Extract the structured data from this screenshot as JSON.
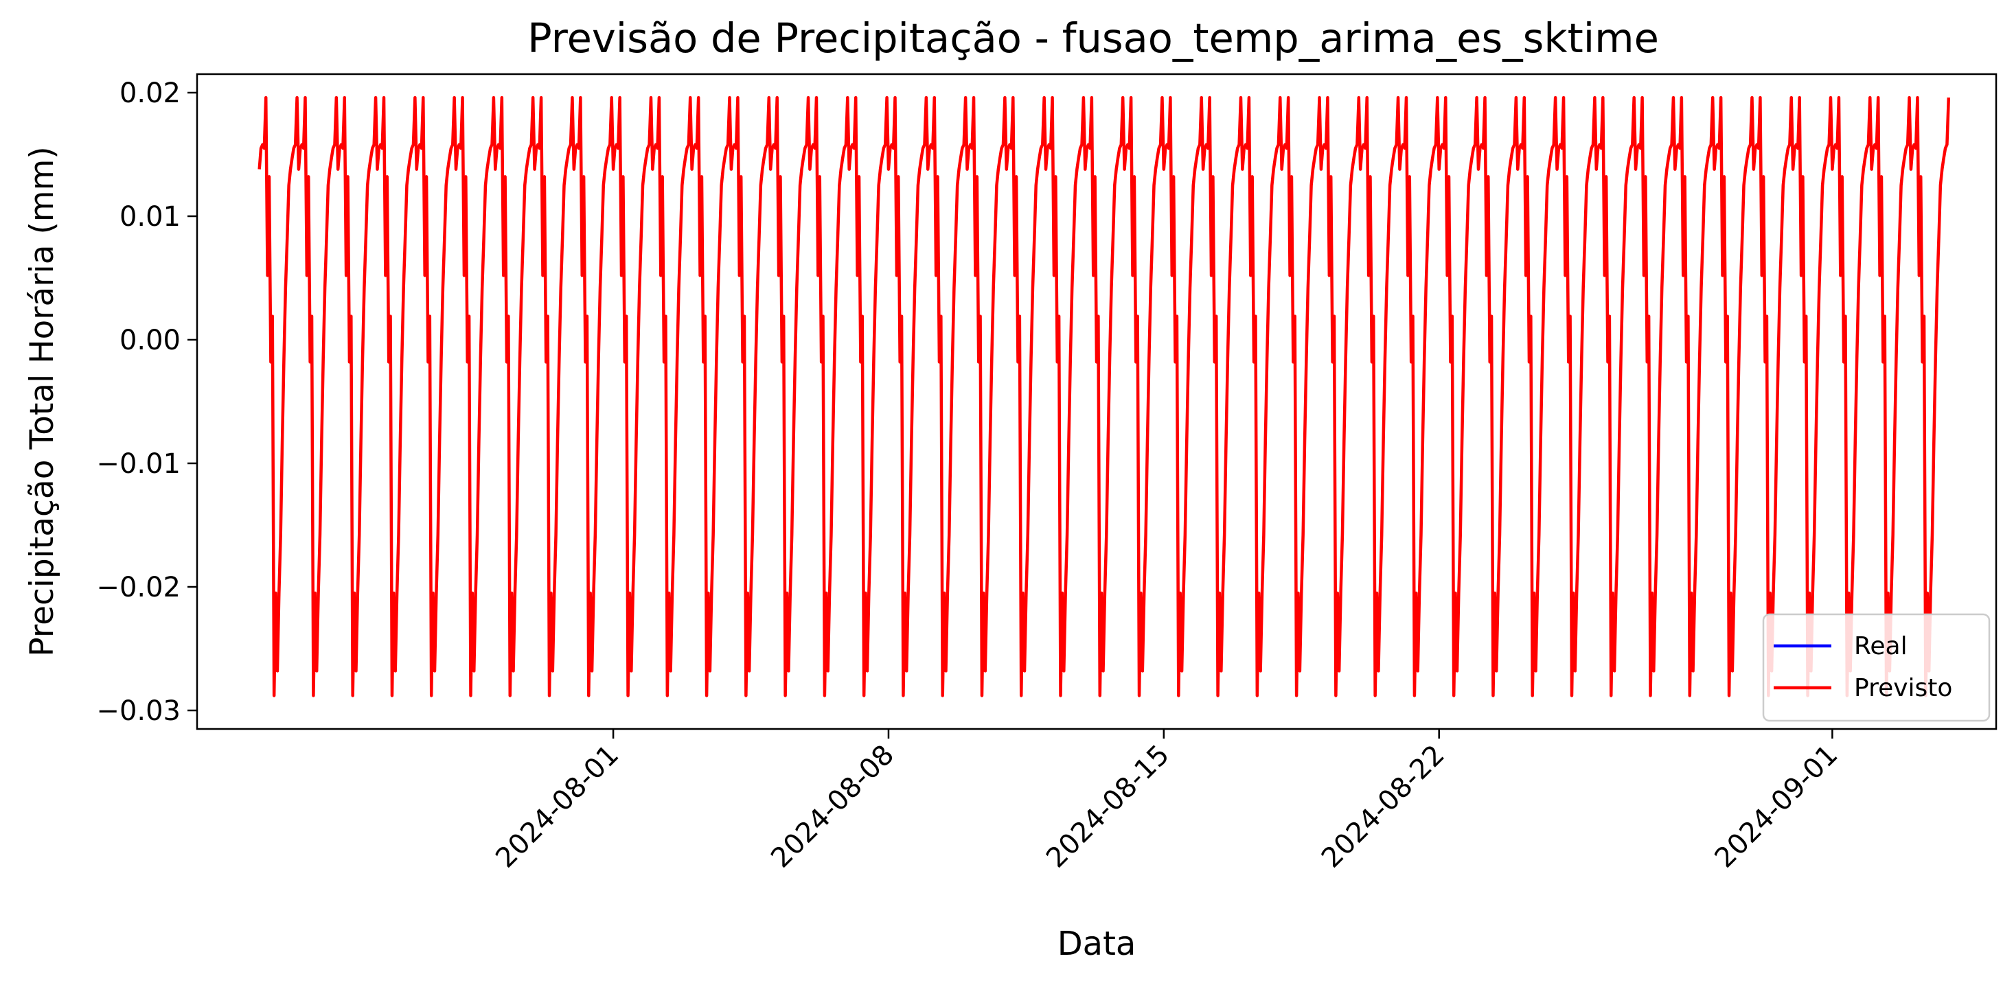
{
  "chart_data": {
    "type": "line",
    "title": "Previsão de Precipitação - fusao_temp_arima_es_sktime",
    "xlabel": "Data",
    "ylabel": "Precipitação Total Horária (mm)",
    "ylim": [
      -0.0315,
      0.0215
    ],
    "xlim": [
      "2024-07-21T10:00",
      "2024-09-05T04:00"
    ],
    "x_start": "2024-07-23T00:00",
    "x_end": "2024-09-03T23:00",
    "x_step_hours": 1,
    "x_ticks": [
      "2024-08-01",
      "2024-08-08",
      "2024-08-15",
      "2024-08-22",
      "2024-09-01"
    ],
    "y_ticks": [
      -0.03,
      -0.02,
      -0.01,
      0.0,
      0.01,
      0.02
    ],
    "y_tick_labels": [
      "−0.03",
      "−0.02",
      "−0.01",
      "0.00",
      "0.01",
      "0.02"
    ],
    "grid": false,
    "legend": {
      "position": "bottom-right"
    },
    "series": [
      {
        "name": "Real",
        "color": "#0000ff",
        "values": []
      },
      {
        "name": "Previsto",
        "color": "#ff0000",
        "daily_pattern": [
          0.0138,
          0.0155,
          0.0158,
          0.0155,
          0.0196,
          0.0052,
          0.0132,
          -0.0018,
          0.0019,
          -0.0288,
          -0.0205,
          -0.0268,
          -0.0205,
          -0.0158,
          -0.0082,
          -0.0015,
          0.0042,
          0.0082,
          0.0125,
          0.0138,
          0.0147,
          0.0155,
          0.0158,
          0.0196
        ]
      }
    ]
  }
}
